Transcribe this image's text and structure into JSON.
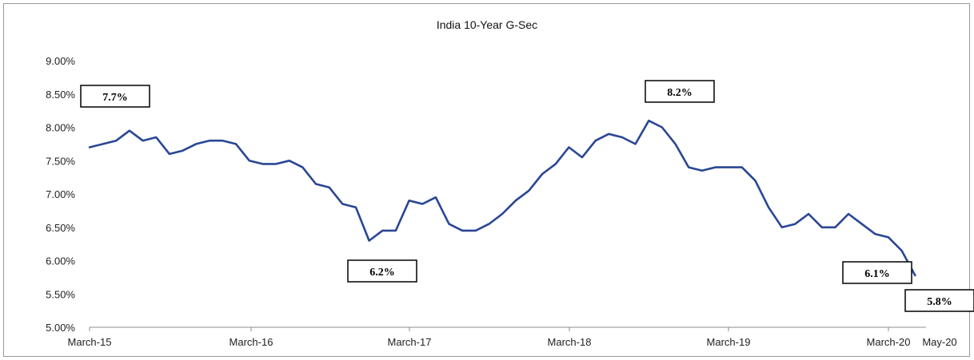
{
  "chart_data": {
    "type": "line",
    "title": "India 10-Year G-Sec",
    "xlabel": "",
    "ylabel": "",
    "ylim": [
      5.0,
      9.0
    ],
    "y_ticks": [
      "5.00%",
      "5.50%",
      "6.00%",
      "6.50%",
      "7.00%",
      "7.50%",
      "8.00%",
      "8.50%",
      "9.00%"
    ],
    "x_ticks": [
      "March-15",
      "March-16",
      "March-17",
      "March-18",
      "March-19",
      "March-20",
      "May-20"
    ],
    "grid": false,
    "legend": "none",
    "series": [
      {
        "color": "#2a4694",
        "x": [
          "2015-03",
          "2015-04",
          "2015-05",
          "2015-06",
          "2015-07",
          "2015-08",
          "2015-09",
          "2015-10",
          "2015-11",
          "2015-12",
          "2016-01",
          "2016-02",
          "2016-03",
          "2016-04",
          "2016-05",
          "2016-06",
          "2016-07",
          "2016-08",
          "2016-09",
          "2016-10",
          "2016-11",
          "2016-12",
          "2017-01",
          "2017-02",
          "2017-03",
          "2017-04",
          "2017-05",
          "2017-06",
          "2017-07",
          "2017-08",
          "2017-09",
          "2017-10",
          "2017-11",
          "2017-12",
          "2018-01",
          "2018-02",
          "2018-03",
          "2018-04",
          "2018-05",
          "2018-06",
          "2018-07",
          "2018-08",
          "2018-09",
          "2018-10",
          "2018-11",
          "2018-12",
          "2019-01",
          "2019-02",
          "2019-03",
          "2019-04",
          "2019-05",
          "2019-06",
          "2019-07",
          "2019-08",
          "2019-09",
          "2019-10",
          "2019-11",
          "2019-12",
          "2020-01",
          "2020-02",
          "2020-03",
          "2020-04",
          "2020-05"
        ],
        "values": [
          7.7,
          7.75,
          7.8,
          7.95,
          7.8,
          7.85,
          7.6,
          7.65,
          7.75,
          7.8,
          7.8,
          7.75,
          7.5,
          7.45,
          7.45,
          7.5,
          7.4,
          7.15,
          7.1,
          6.85,
          6.8,
          6.3,
          6.45,
          6.45,
          6.9,
          6.85,
          6.95,
          6.55,
          6.45,
          6.45,
          6.55,
          6.7,
          6.9,
          7.05,
          7.3,
          7.45,
          7.7,
          7.55,
          7.8,
          7.9,
          7.85,
          7.75,
          8.1,
          8.0,
          7.75,
          7.4,
          7.35,
          7.4,
          7.4,
          7.4,
          7.2,
          6.8,
          6.5,
          6.55,
          6.7,
          6.5,
          6.5,
          6.7,
          6.55,
          6.4,
          6.35,
          6.15,
          5.78
        ]
      }
    ],
    "annotations": [
      {
        "label": "7.7%",
        "x": "2015-03",
        "y": 7.7
      },
      {
        "label": "6.2%",
        "x": "2016-12",
        "y": 6.2
      },
      {
        "label": "8.2%",
        "x": "2018-09",
        "y": 8.2
      },
      {
        "label": "6.1%",
        "x": "2020-03",
        "y": 6.1
      },
      {
        "label": "5.8%",
        "x": "2020-05",
        "y": 5.8
      }
    ]
  }
}
